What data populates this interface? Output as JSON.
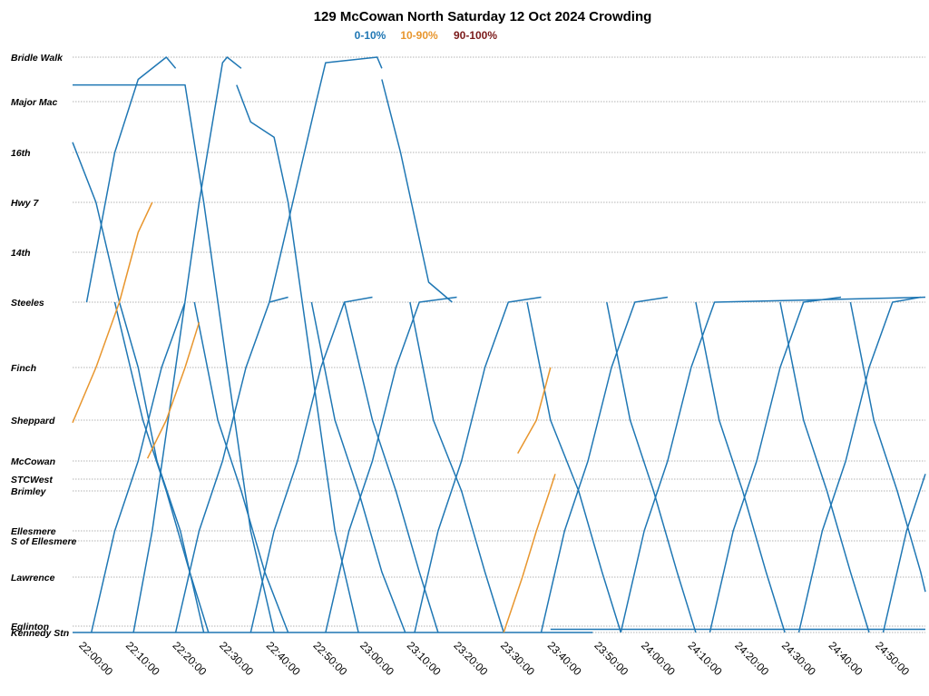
{
  "chart_data": {
    "type": "line",
    "title": "129 McCowan North Saturday 12 Oct 2024 Crowding",
    "legend": [
      {
        "label": "0-10%",
        "color": "#1f77b4"
      },
      {
        "label": "10-90%",
        "color": "#e8962e"
      },
      {
        "label": "90-100%",
        "color": "#7b1a1a"
      }
    ],
    "legend_placement": "top-center",
    "xlabel": "",
    "ylabel": "",
    "x_range": [
      "21:58:00",
      "25:00:00"
    ],
    "x_ticks": [
      "22:00:00",
      "22:10:00",
      "22:20:00",
      "22:30:00",
      "22:40:00",
      "22:50:00",
      "23:00:00",
      "23:10:00",
      "23:20:00",
      "23:30:00",
      "23:40:00",
      "23:50:00",
      "24:00:00",
      "24:10:00",
      "24:20:00",
      "24:30:00",
      "24:40:00",
      "24:50:00"
    ],
    "stops": [
      {
        "name": "Bridle Walk",
        "km": 17.4
      },
      {
        "name": "Major Mac",
        "km": 16.6
      },
      {
        "name": "16th",
        "km": 15.6
      },
      {
        "name": "Hwy 7",
        "km": 14.6
      },
      {
        "name": "14th",
        "km": 13.6
      },
      {
        "name": "Steeles",
        "km": 12.6
      },
      {
        "name": "Finch",
        "km": 11.3
      },
      {
        "name": "Sheppard",
        "km": 10.25
      },
      {
        "name": "McCowan",
        "km": 9.45
      },
      {
        "name": "STCWest",
        "km": 9.1
      },
      {
        "name": "Brimley",
        "km": 8.85
      },
      {
        "name": "Ellesmere",
        "km": 7.9
      },
      {
        "name": "S of Ellesmere",
        "km": 7.6
      },
      {
        "name": "Lawrence",
        "km": 6.9
      },
      {
        "name": "Eglinton",
        "km": 5.9
      },
      {
        "name": "Kennedy Stn",
        "km": 5.8
      }
    ],
    "gridlines": true,
    "series": [
      {
        "crowding": "0-10%",
        "points": [
          [
            "22:01:00",
            12.6
          ],
          [
            "22:07:00",
            15.6
          ],
          [
            "22:12:00",
            17.0
          ],
          [
            "22:18:00",
            17.4
          ],
          [
            "22:20:00",
            17.2
          ]
        ]
      },
      {
        "crowding": "0-10%",
        "points": [
          [
            "22:11:00",
            5.8
          ],
          [
            "22:15:00",
            7.9
          ],
          [
            "22:20:00",
            11.3
          ],
          [
            "22:25:00",
            14.6
          ],
          [
            "22:30:00",
            17.3
          ],
          [
            "22:31:00",
            17.4
          ],
          [
            "22:34:00",
            17.2
          ]
        ]
      },
      {
        "crowding": "0-10%",
        "points": [
          [
            "22:40:00",
            12.6
          ],
          [
            "22:45:00",
            14.6
          ],
          [
            "22:50:00",
            16.6
          ],
          [
            "22:52:00",
            17.3
          ],
          [
            "23:03:00",
            17.4
          ],
          [
            "23:04:00",
            17.2
          ]
        ]
      },
      {
        "crowding": "0-10%",
        "points": [
          [
            "21:58:00",
            16.9
          ],
          [
            "22:22:00",
            16.9
          ],
          [
            "22:26:00",
            14.6
          ],
          [
            "22:31:00",
            11.3
          ],
          [
            "22:36:00",
            7.9
          ],
          [
            "22:41:00",
            5.8
          ]
        ]
      },
      {
        "crowding": "0-10%",
        "points": [
          [
            "22:33:00",
            16.9
          ],
          [
            "22:36:00",
            16.2
          ],
          [
            "22:41:00",
            15.9
          ],
          [
            "22:44:00",
            14.6
          ],
          [
            "22:49:00",
            11.3
          ],
          [
            "22:54:00",
            7.9
          ],
          [
            "22:59:00",
            5.8
          ]
        ]
      },
      {
        "crowding": "0-10%",
        "points": [
          [
            "23:04:00",
            17.0
          ],
          [
            "23:08:00",
            15.6
          ],
          [
            "23:14:00",
            13.0
          ],
          [
            "23:19:00",
            12.6
          ]
        ]
      },
      {
        "crowding": "0-10%",
        "points": [
          [
            "21:58:00",
            15.8
          ],
          [
            "22:03:00",
            14.6
          ],
          [
            "22:08:00",
            12.6
          ],
          [
            "22:12:00",
            11.3
          ],
          [
            "22:16:00",
            9.45
          ],
          [
            "22:21:00",
            7.9
          ],
          [
            "22:26:00",
            5.8
          ]
        ]
      },
      {
        "crowding": "0-10%",
        "points": [
          [
            "22:07:00",
            12.6
          ],
          [
            "22:13:00",
            10.25
          ],
          [
            "22:18:00",
            8.85
          ],
          [
            "22:23:00",
            7.0
          ],
          [
            "22:27:00",
            5.8
          ]
        ]
      },
      {
        "crowding": "0-10%",
        "points": [
          [
            "22:24:00",
            12.6
          ],
          [
            "22:29:00",
            10.25
          ],
          [
            "22:34:00",
            8.85
          ],
          [
            "22:39:00",
            7.0
          ],
          [
            "22:44:00",
            5.8
          ]
        ]
      },
      {
        "crowding": "0-10%",
        "points": [
          [
            "22:49:00",
            12.6
          ],
          [
            "22:54:00",
            10.25
          ],
          [
            "22:59:00",
            8.85
          ],
          [
            "23:04:00",
            7.0
          ],
          [
            "23:09:00",
            5.8
          ]
        ]
      },
      {
        "crowding": "0-10%",
        "points": [
          [
            "22:56:00",
            12.6
          ],
          [
            "23:02:00",
            10.25
          ],
          [
            "23:07:00",
            8.85
          ],
          [
            "23:12:00",
            7.0
          ],
          [
            "23:16:00",
            5.8
          ]
        ]
      },
      {
        "crowding": "0-10%",
        "points": [
          [
            "23:10:00",
            12.6
          ],
          [
            "23:15:00",
            10.25
          ],
          [
            "23:21:00",
            8.85
          ],
          [
            "23:26:00",
            7.0
          ],
          [
            "23:30:00",
            5.8
          ]
        ]
      },
      {
        "crowding": "0-10%",
        "points": [
          [
            "23:35:00",
            12.6
          ],
          [
            "23:40:00",
            10.25
          ],
          [
            "23:46:00",
            8.85
          ],
          [
            "23:51:00",
            7.0
          ],
          [
            "23:55:00",
            5.8
          ]
        ]
      },
      {
        "crowding": "0-10%",
        "points": [
          [
            "23:52:00",
            12.6
          ],
          [
            "23:57:00",
            10.25
          ],
          [
            "24:02:00",
            8.85
          ],
          [
            "24:07:00",
            7.0
          ],
          [
            "24:11:00",
            5.8
          ]
        ]
      },
      {
        "crowding": "0-10%",
        "points": [
          [
            "24:11:00",
            12.6
          ],
          [
            "24:16:00",
            10.25
          ],
          [
            "24:21:00",
            8.85
          ],
          [
            "24:26:00",
            7.0
          ],
          [
            "24:30:00",
            5.8
          ]
        ]
      },
      {
        "crowding": "0-10%",
        "points": [
          [
            "24:29:00",
            12.6
          ],
          [
            "24:34:00",
            10.25
          ],
          [
            "24:39:00",
            8.85
          ],
          [
            "24:44:00",
            7.0
          ],
          [
            "24:48:00",
            5.8
          ]
        ]
      },
      {
        "crowding": "0-10%",
        "points": [
          [
            "24:44:00",
            12.6
          ],
          [
            "24:49:00",
            10.25
          ],
          [
            "24:54:00",
            8.85
          ],
          [
            "24:59:00",
            7.0
          ],
          [
            "25:00:00",
            6.6
          ]
        ]
      },
      {
        "crowding": "0-10%",
        "points": [
          [
            "22:02:00",
            5.8
          ],
          [
            "22:07:00",
            7.9
          ],
          [
            "22:12:00",
            9.45
          ],
          [
            "22:17:00",
            11.3
          ],
          [
            "22:22:00",
            12.6
          ]
        ]
      },
      {
        "crowding": "0-10%",
        "points": [
          [
            "22:20:00",
            5.8
          ],
          [
            "22:25:00",
            7.9
          ],
          [
            "22:30:00",
            9.45
          ],
          [
            "22:35:00",
            11.3
          ],
          [
            "22:40:00",
            12.6
          ],
          [
            "22:44:00",
            12.7
          ]
        ]
      },
      {
        "crowding": "0-10%",
        "points": [
          [
            "22:36:00",
            5.8
          ],
          [
            "22:41:00",
            7.9
          ],
          [
            "22:46:00",
            9.45
          ],
          [
            "22:51:00",
            11.3
          ],
          [
            "22:56:00",
            12.6
          ],
          [
            "23:02:00",
            12.7
          ]
        ]
      },
      {
        "crowding": "0-10%",
        "points": [
          [
            "22:52:00",
            5.8
          ],
          [
            "22:57:00",
            7.9
          ],
          [
            "23:02:00",
            9.45
          ],
          [
            "23:07:00",
            11.3
          ],
          [
            "23:12:00",
            12.6
          ],
          [
            "23:20:00",
            12.7
          ]
        ]
      },
      {
        "crowding": "0-10%",
        "points": [
          [
            "23:11:00",
            5.8
          ],
          [
            "23:16:00",
            7.9
          ],
          [
            "23:21:00",
            9.45
          ],
          [
            "23:26:00",
            11.3
          ],
          [
            "23:31:00",
            12.6
          ],
          [
            "23:38:00",
            12.7
          ]
        ]
      },
      {
        "crowding": "0-10%",
        "points": [
          [
            "23:38:00",
            5.8
          ],
          [
            "23:43:00",
            7.9
          ],
          [
            "23:48:00",
            9.45
          ],
          [
            "23:53:00",
            11.3
          ],
          [
            "23:58:00",
            12.6
          ],
          [
            "24:05:00",
            12.7
          ]
        ]
      },
      {
        "crowding": "0-10%",
        "points": [
          [
            "23:55:00",
            5.8
          ],
          [
            "24:00:00",
            7.9
          ],
          [
            "24:05:00",
            9.45
          ],
          [
            "24:10:00",
            11.3
          ],
          [
            "24:15:00",
            12.6
          ],
          [
            "25:00:00",
            12.7
          ]
        ]
      },
      {
        "crowding": "0-10%",
        "points": [
          [
            "24:14:00",
            5.8
          ],
          [
            "24:19:00",
            7.9
          ],
          [
            "24:24:00",
            9.45
          ],
          [
            "24:29:00",
            11.3
          ],
          [
            "24:34:00",
            12.6
          ],
          [
            "24:42:00",
            12.7
          ]
        ]
      },
      {
        "crowding": "0-10%",
        "points": [
          [
            "24:33:00",
            5.8
          ],
          [
            "24:38:00",
            7.9
          ],
          [
            "24:43:00",
            9.45
          ],
          [
            "24:48:00",
            11.3
          ],
          [
            "24:53:00",
            12.6
          ],
          [
            "24:59:00",
            12.7
          ]
        ]
      },
      {
        "crowding": "0-10%",
        "points": [
          [
            "24:51:00",
            5.8
          ],
          [
            "24:56:00",
            7.9
          ],
          [
            "25:00:00",
            9.2
          ]
        ]
      },
      {
        "crowding": "0-10%",
        "points": [
          [
            "21:58:00",
            5.8
          ],
          [
            "23:49:00",
            5.8
          ]
        ]
      },
      {
        "crowding": "0-10%",
        "points": [
          [
            "23:40:00",
            5.85
          ],
          [
            "25:00:00",
            5.85
          ]
        ]
      },
      {
        "crowding": "10-90%",
        "points": [
          [
            "21:58:00",
            10.2
          ],
          [
            "22:03:00",
            11.3
          ],
          [
            "22:08:00",
            12.6
          ],
          [
            "22:12:00",
            14.0
          ],
          [
            "22:15:00",
            14.6
          ]
        ]
      },
      {
        "crowding": "10-90%",
        "points": [
          [
            "22:14:00",
            9.5
          ],
          [
            "22:18:00",
            10.25
          ],
          [
            "22:22:00",
            11.3
          ],
          [
            "22:25:00",
            12.2
          ]
        ]
      },
      {
        "crowding": "10-90%",
        "points": [
          [
            "23:30:00",
            5.8
          ],
          [
            "23:34:00",
            6.9
          ],
          [
            "23:37:00",
            7.9
          ],
          [
            "23:40:00",
            8.9
          ],
          [
            "23:41:00",
            9.2
          ]
        ]
      },
      {
        "crowding": "10-90%",
        "points": [
          [
            "23:33:00",
            9.6
          ],
          [
            "23:37:00",
            10.25
          ],
          [
            "23:40:00",
            11.3
          ]
        ]
      }
    ]
  }
}
